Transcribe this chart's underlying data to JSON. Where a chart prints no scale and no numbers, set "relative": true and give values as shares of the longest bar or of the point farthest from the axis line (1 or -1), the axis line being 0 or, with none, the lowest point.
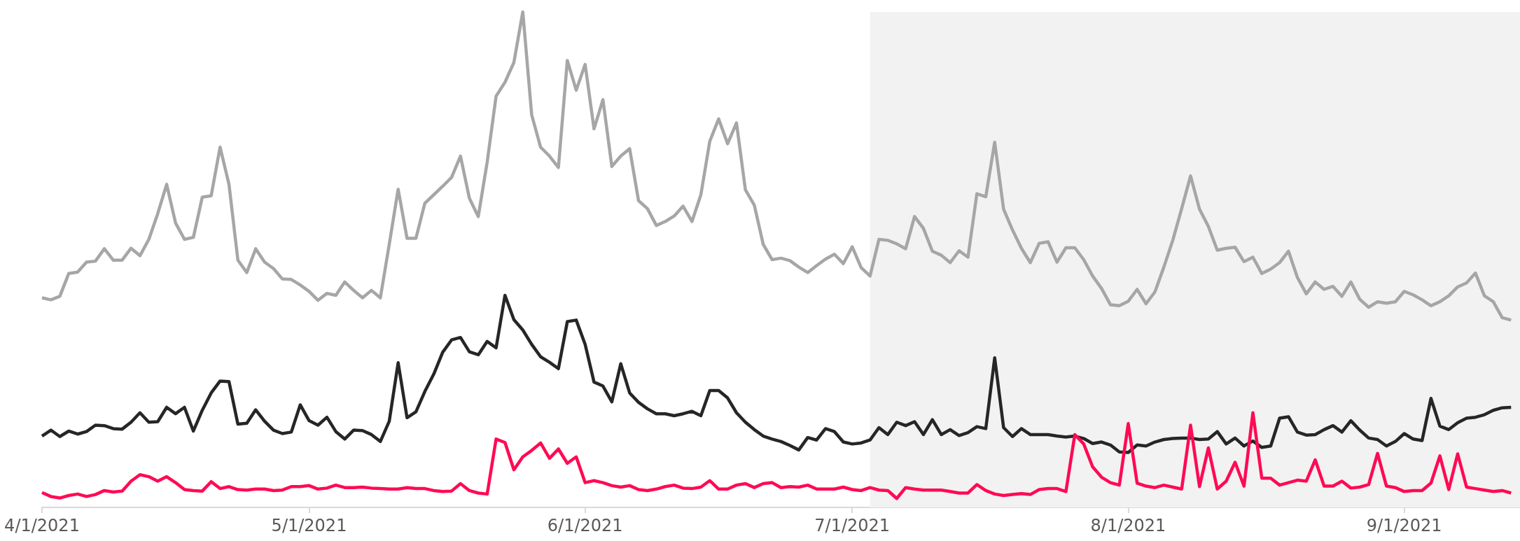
{
  "chart_data": {
    "type": "line",
    "relative": true,
    "marker": "none",
    "line_style": "solid",
    "x": [
      "2021-04-01",
      "2021-04-02",
      "2021-04-03",
      "2021-04-04",
      "2021-04-05",
      "2021-04-06",
      "2021-04-07",
      "2021-04-08",
      "2021-04-09",
      "2021-04-10",
      "2021-04-11",
      "2021-04-12",
      "2021-04-13",
      "2021-04-14",
      "2021-04-15",
      "2021-04-16",
      "2021-04-17",
      "2021-04-18",
      "2021-04-19",
      "2021-04-20",
      "2021-04-21",
      "2021-04-22",
      "2021-04-23",
      "2021-04-24",
      "2021-04-25",
      "2021-04-26",
      "2021-04-27",
      "2021-04-28",
      "2021-04-29",
      "2021-04-30",
      "2021-05-01",
      "2021-05-02",
      "2021-05-03",
      "2021-05-04",
      "2021-05-05",
      "2021-05-06",
      "2021-05-07",
      "2021-05-08",
      "2021-05-09",
      "2021-05-10",
      "2021-05-11",
      "2021-05-12",
      "2021-05-13",
      "2021-05-14",
      "2021-05-15",
      "2021-05-16",
      "2021-05-17",
      "2021-05-18",
      "2021-05-19",
      "2021-05-20",
      "2021-05-21",
      "2021-05-22",
      "2021-05-23",
      "2021-05-24",
      "2021-05-25",
      "2021-05-26",
      "2021-05-27",
      "2021-05-28",
      "2021-05-29",
      "2021-05-30",
      "2021-05-31",
      "2021-06-01",
      "2021-06-02",
      "2021-06-03",
      "2021-06-04",
      "2021-06-05",
      "2021-06-06",
      "2021-06-07",
      "2021-06-08",
      "2021-06-09",
      "2021-06-10",
      "2021-06-11",
      "2021-06-12",
      "2021-06-13",
      "2021-06-14",
      "2021-06-15",
      "2021-06-16",
      "2021-06-17",
      "2021-06-18",
      "2021-06-19",
      "2021-06-20",
      "2021-06-21",
      "2021-06-22",
      "2021-06-23",
      "2021-06-24",
      "2021-06-25",
      "2021-06-26",
      "2021-06-27",
      "2021-06-28",
      "2021-06-29",
      "2021-06-30",
      "2021-07-01",
      "2021-07-02",
      "2021-07-03",
      "2021-07-04",
      "2021-07-05",
      "2021-07-06",
      "2021-07-07",
      "2021-07-08",
      "2021-07-09",
      "2021-07-10",
      "2021-07-11",
      "2021-07-12",
      "2021-07-13",
      "2021-07-14",
      "2021-07-15",
      "2021-07-16",
      "2021-07-17",
      "2021-07-18",
      "2021-07-19",
      "2021-07-20",
      "2021-07-21",
      "2021-07-22",
      "2021-07-23",
      "2021-07-24",
      "2021-07-25",
      "2021-07-26",
      "2021-07-27",
      "2021-07-28",
      "2021-07-29",
      "2021-07-30",
      "2021-07-31",
      "2021-08-01",
      "2021-08-02",
      "2021-08-03",
      "2021-08-04",
      "2021-08-05",
      "2021-08-06",
      "2021-08-07",
      "2021-08-08",
      "2021-08-09",
      "2021-08-10",
      "2021-08-11",
      "2021-08-12",
      "2021-08-13",
      "2021-08-14",
      "2021-08-15",
      "2021-08-16",
      "2021-08-17",
      "2021-08-18",
      "2021-08-19",
      "2021-08-20",
      "2021-08-21",
      "2021-08-22",
      "2021-08-23",
      "2021-08-24",
      "2021-08-25",
      "2021-08-26",
      "2021-08-27",
      "2021-08-28",
      "2021-08-29",
      "2021-08-30",
      "2021-08-31",
      "2021-09-01",
      "2021-09-02",
      "2021-09-03",
      "2021-09-04",
      "2021-09-05",
      "2021-09-06",
      "2021-09-07",
      "2021-09-08",
      "2021-09-09",
      "2021-09-10",
      "2021-09-11",
      "2021-09-12",
      "2021-09-13"
    ],
    "xlim": [
      "2021-04-01",
      "2021-09-14"
    ],
    "xticks": [
      {
        "value": "2021-04-01",
        "label": "4/1/2021"
      },
      {
        "value": "2021-05-01",
        "label": "5/1/2021"
      },
      {
        "value": "2021-06-01",
        "label": "6/1/2021"
      },
      {
        "value": "2021-07-01",
        "label": "7/1/2021"
      },
      {
        "value": "2021-08-01",
        "label": "8/1/2021"
      },
      {
        "value": "2021-09-01",
        "label": "9/1/2021"
      }
    ],
    "bands": [
      {
        "axis": "x",
        "from": "2021-07-03",
        "to": "2021-09-14",
        "color": "#f2f2f2"
      }
    ],
    "series": [
      {
        "color": "#a6a6a6",
        "values": [
          0.423,
          0.419,
          0.426,
          0.472,
          0.475,
          0.495,
          0.497,
          0.522,
          0.499,
          0.499,
          0.523,
          0.508,
          0.541,
          0.593,
          0.652,
          0.574,
          0.541,
          0.545,
          0.626,
          0.629,
          0.727,
          0.652,
          0.499,
          0.474,
          0.522,
          0.495,
          0.482,
          0.461,
          0.46,
          0.449,
          0.436,
          0.418,
          0.432,
          0.428,
          0.455,
          0.438,
          0.423,
          0.438,
          0.423,
          0.531,
          0.642,
          0.543,
          0.543,
          0.614,
          0.631,
          0.648,
          0.666,
          0.709,
          0.624,
          0.587,
          0.697,
          0.83,
          0.858,
          0.898,
          1,
          0.792,
          0.727,
          0.709,
          0.686,
          0.902,
          0.842,
          0.894,
          0.764,
          0.823,
          0.688,
          0.709,
          0.724,
          0.619,
          0.603,
          0.569,
          0.577,
          0.588,
          0.608,
          0.577,
          0.631,
          0.739,
          0.784,
          0.734,
          0.776,
          0.641,
          0.61,
          0.531,
          0.5,
          0.503,
          0.498,
          0.485,
          0.474,
          0.488,
          0.501,
          0.511,
          0.492,
          0.526,
          0.484,
          0.467,
          0.541,
          0.539,
          0.532,
          0.522,
          0.587,
          0.563,
          0.517,
          0.509,
          0.494,
          0.518,
          0.505,
          0.633,
          0.627,
          0.737,
          0.602,
          0.56,
          0.523,
          0.494,
          0.533,
          0.536,
          0.495,
          0.524,
          0.524,
          0.5,
          0.467,
          0.442,
          0.409,
          0.407,
          0.416,
          0.44,
          0.411,
          0.435,
          0.485,
          0.539,
          0.603,
          0.669,
          0.602,
          0.567,
          0.519,
          0.523,
          0.525,
          0.496,
          0.505,
          0.472,
          0.481,
          0.494,
          0.517,
          0.464,
          0.431,
          0.455,
          0.44,
          0.446,
          0.426,
          0.455,
          0.42,
          0.404,
          0.415,
          0.412,
          0.415,
          0.436,
          0.429,
          0.419,
          0.407,
          0.415,
          0.427,
          0.445,
          0.453,
          0.473,
          0.427,
          0.415,
          0.383,
          0.378
        ]
      },
      {
        "color": "#262626",
        "values": [
          0.144,
          0.156,
          0.143,
          0.154,
          0.148,
          0.153,
          0.166,
          0.165,
          0.159,
          0.158,
          0.172,
          0.191,
          0.172,
          0.173,
          0.202,
          0.189,
          0.202,
          0.154,
          0.196,
          0.231,
          0.255,
          0.254,
          0.168,
          0.17,
          0.197,
          0.174,
          0.156,
          0.149,
          0.152,
          0.207,
          0.175,
          0.166,
          0.182,
          0.153,
          0.138,
          0.156,
          0.155,
          0.147,
          0.133,
          0.174,
          0.292,
          0.181,
          0.193,
          0.234,
          0.269,
          0.313,
          0.338,
          0.343,
          0.314,
          0.308,
          0.335,
          0.322,
          0.428,
          0.379,
          0.358,
          0.329,
          0.304,
          0.293,
          0.28,
          0.375,
          0.378,
          0.329,
          0.253,
          0.245,
          0.213,
          0.29,
          0.231,
          0.212,
          0.199,
          0.189,
          0.189,
          0.185,
          0.189,
          0.194,
          0.185,
          0.236,
          0.236,
          0.221,
          0.191,
          0.172,
          0.157,
          0.144,
          0.138,
          0.133,
          0.125,
          0.116,
          0.141,
          0.136,
          0.159,
          0.153,
          0.132,
          0.128,
          0.13,
          0.136,
          0.161,
          0.147,
          0.172,
          0.165,
          0.173,
          0.147,
          0.177,
          0.147,
          0.157,
          0.145,
          0.151,
          0.163,
          0.159,
          0.302,
          0.161,
          0.143,
          0.159,
          0.147,
          0.147,
          0.147,
          0.144,
          0.142,
          0.144,
          0.139,
          0.129,
          0.132,
          0.126,
          0.112,
          0.111,
          0.126,
          0.124,
          0.132,
          0.137,
          0.139,
          0.14,
          0.14,
          0.137,
          0.138,
          0.153,
          0.128,
          0.14,
          0.124,
          0.134,
          0.121,
          0.124,
          0.18,
          0.183,
          0.152,
          0.146,
          0.147,
          0.157,
          0.165,
          0.152,
          0.175,
          0.156,
          0.14,
          0.137,
          0.124,
          0.133,
          0.149,
          0.138,
          0.135,
          0.22,
          0.164,
          0.157,
          0.171,
          0.18,
          0.182,
          0.187,
          0.196,
          0.201,
          0.202
        ]
      },
      {
        "color": "#ff0a54",
        "values": [
          0.03,
          0.022,
          0.019,
          0.024,
          0.027,
          0.022,
          0.026,
          0.034,
          0.031,
          0.033,
          0.053,
          0.066,
          0.062,
          0.053,
          0.062,
          0.05,
          0.036,
          0.034,
          0.033,
          0.052,
          0.038,
          0.042,
          0.036,
          0.035,
          0.037,
          0.037,
          0.034,
          0.035,
          0.042,
          0.042,
          0.044,
          0.037,
          0.039,
          0.045,
          0.04,
          0.04,
          0.041,
          0.039,
          0.038,
          0.037,
          0.037,
          0.04,
          0.038,
          0.038,
          0.034,
          0.032,
          0.033,
          0.048,
          0.034,
          0.029,
          0.027,
          0.138,
          0.131,
          0.076,
          0.102,
          0.115,
          0.13,
          0.099,
          0.118,
          0.089,
          0.102,
          0.05,
          0.054,
          0.05,
          0.044,
          0.041,
          0.044,
          0.036,
          0.034,
          0.037,
          0.042,
          0.045,
          0.039,
          0.038,
          0.041,
          0.054,
          0.037,
          0.037,
          0.045,
          0.048,
          0.04,
          0.048,
          0.05,
          0.04,
          0.042,
          0.041,
          0.045,
          0.037,
          0.037,
          0.037,
          0.041,
          0.036,
          0.034,
          0.04,
          0.035,
          0.034,
          0.018,
          0.04,
          0.037,
          0.035,
          0.035,
          0.035,
          0.032,
          0.029,
          0.029,
          0.046,
          0.034,
          0.027,
          0.024,
          0.026,
          0.028,
          0.026,
          0.036,
          0.038,
          0.038,
          0.032,
          0.147,
          0.128,
          0.082,
          0.061,
          0.05,
          0.045,
          0.169,
          0.049,
          0.043,
          0.04,
          0.045,
          0.041,
          0.037,
          0.166,
          0.042,
          0.12,
          0.037,
          0.053,
          0.091,
          0.043,
          0.191,
          0.059,
          0.059,
          0.045,
          0.05,
          0.055,
          0.053,
          0.096,
          0.043,
          0.043,
          0.053,
          0.039,
          0.041,
          0.046,
          0.109,
          0.043,
          0.04,
          0.032,
          0.034,
          0.034,
          0.049,
          0.104,
          0.036,
          0.108,
          0.041,
          0.038,
          0.035,
          0.032,
          0.034,
          0.029
        ]
      }
    ]
  }
}
